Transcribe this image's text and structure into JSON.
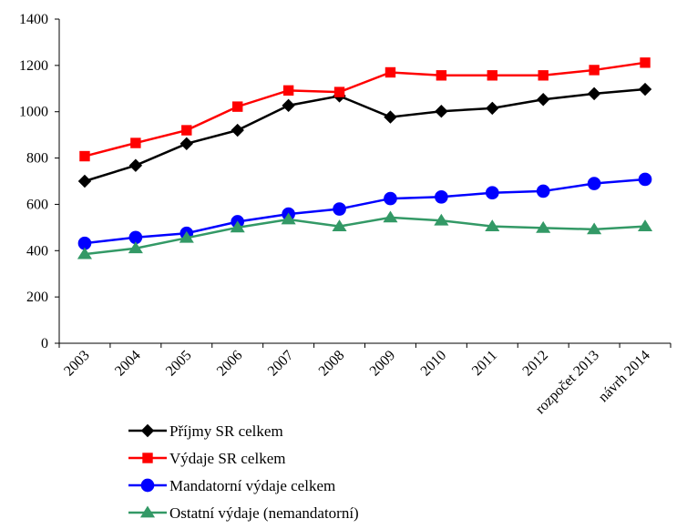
{
  "chart_data": {
    "type": "line",
    "title": "",
    "xlabel": "",
    "ylabel": "",
    "ylim": [
      0,
      1400
    ],
    "yticks": [
      0,
      200,
      400,
      600,
      800,
      1000,
      1200,
      1400
    ],
    "categories": [
      "2003",
      "2004",
      "2005",
      "2006",
      "2007",
      "2008",
      "2009",
      "2010",
      "2011",
      "2012",
      "rozpočet 2013",
      "návrh 2014"
    ],
    "grid": false,
    "legend": "bottom",
    "series": [
      {
        "name": "Příjmy SR celkem",
        "color": "#000000",
        "marker": "diamond",
        "values": [
          700,
          768,
          862,
          920,
          1027,
          1068,
          977,
          1002,
          1015,
          1053,
          1078,
          1097
        ]
      },
      {
        "name": "Výdaje SR celkem",
        "color": "#ff0000",
        "marker": "square",
        "values": [
          808,
          865,
          920,
          1022,
          1092,
          1085,
          1170,
          1157,
          1157,
          1157,
          1180,
          1212
        ]
      },
      {
        "name": "Mandatorní výdaje celkem",
        "color": "#0000ff",
        "marker": "circle",
        "values": [
          432,
          457,
          475,
          525,
          558,
          580,
          625,
          632,
          650,
          657,
          690,
          708
        ]
      },
      {
        "name": "Ostatní výdaje (nemandatorní)",
        "color": "#339966",
        "marker": "triangle",
        "values": [
          385,
          410,
          455,
          500,
          535,
          505,
          543,
          530,
          505,
          498,
          492,
          505
        ]
      }
    ]
  }
}
